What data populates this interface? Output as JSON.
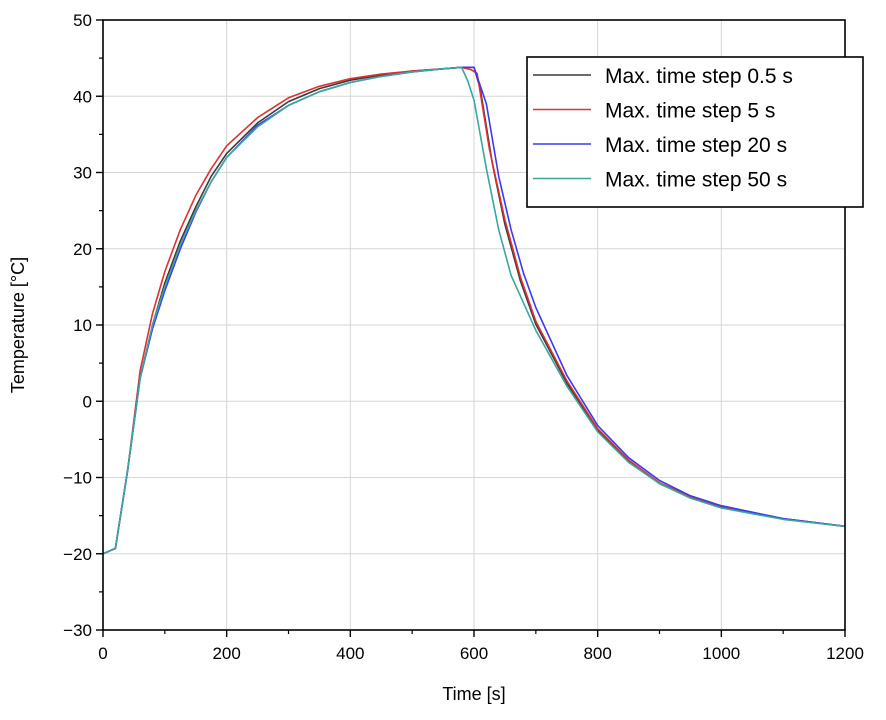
{
  "chart_data": {
    "type": "line",
    "xlabel": "Time [s]",
    "ylabel": "Temperature [°C]",
    "xlim": [
      0,
      1200
    ],
    "ylim": [
      -30,
      50
    ],
    "xticks": [
      0,
      200,
      400,
      600,
      800,
      1000,
      1200
    ],
    "xtick_labels": [
      "0",
      "200",
      "400",
      "600",
      "800",
      "1000",
      "1200"
    ],
    "yticks": [
      -30,
      -20,
      -10,
      0,
      10,
      20,
      30,
      40,
      50
    ],
    "ytick_labels": [
      "−30",
      "−20",
      "−10",
      "0",
      "10",
      "20",
      "30",
      "40",
      "50"
    ],
    "grid": true,
    "legend_position": "top-right",
    "series": [
      {
        "name": "Max. time step 0.5 s",
        "color": "#3a3a3a",
        "x": [
          0,
          20,
          40,
          60,
          80,
          100,
          125,
          150,
          175,
          200,
          250,
          300,
          350,
          400,
          450,
          500,
          550,
          580,
          600,
          610,
          620,
          630,
          650,
          675,
          700,
          750,
          800,
          850,
          900,
          950,
          1000,
          1100,
          1200
        ],
        "y": [
          -20,
          -19.3,
          -9,
          3,
          10,
          15.5,
          21,
          25.5,
          29.5,
          32.5,
          36.5,
          39.3,
          41,
          42.1,
          42.8,
          43.3,
          43.6,
          43.8,
          43.8,
          41,
          36,
          31,
          23.2,
          15.8,
          10.1,
          2.4,
          -3.8,
          -7.8,
          -10.8,
          -12.6,
          -13.9,
          -15.4,
          -16.4
        ]
      },
      {
        "name": "Max. time step 5 s",
        "color": "#e03030",
        "x": [
          0,
          20,
          40,
          60,
          80,
          100,
          125,
          150,
          175,
          200,
          250,
          300,
          350,
          400,
          450,
          500,
          550,
          580,
          595,
          605,
          615,
          625,
          650,
          675,
          700,
          750,
          800,
          850,
          900,
          950,
          1000,
          1100,
          1200
        ],
        "y": [
          -20,
          -19.3,
          -9,
          4,
          11.5,
          17,
          22.5,
          27,
          30.5,
          33.5,
          37.2,
          39.8,
          41.3,
          42.3,
          42.9,
          43.3,
          43.6,
          43.8,
          43.5,
          43,
          38,
          33,
          23.8,
          16.3,
          10.5,
          2.7,
          -3.6,
          -7.7,
          -10.7,
          -12.5,
          -13.8,
          -15.4,
          -16.4
        ]
      },
      {
        "name": "Max. time step 20 s",
        "color": "#3a3af0",
        "x": [
          0,
          20,
          40,
          60,
          80,
          100,
          125,
          150,
          175,
          200,
          250,
          300,
          350,
          400,
          450,
          500,
          550,
          580,
          600,
          620,
          640,
          660,
          680,
          700,
          750,
          800,
          850,
          900,
          950,
          1000,
          1100,
          1200
        ],
        "y": [
          -20,
          -19.3,
          -9,
          3,
          9.5,
          14.5,
          20,
          24.8,
          28.8,
          32,
          36.2,
          38.8,
          40.6,
          41.8,
          42.6,
          43.2,
          43.6,
          43.8,
          43.8,
          39,
          29.5,
          22.5,
          16.8,
          12.3,
          3.4,
          -3.2,
          -7.4,
          -10.4,
          -12.4,
          -13.7,
          -15.4,
          -16.4
        ]
      },
      {
        "name": "Max. time step 50 s",
        "color": "#3aa6a0",
        "x": [
          0,
          20,
          40,
          60,
          80,
          100,
          125,
          150,
          175,
          200,
          250,
          300,
          350,
          400,
          450,
          500,
          550,
          580,
          590,
          600,
          620,
          640,
          660,
          700,
          750,
          800,
          850,
          900,
          950,
          1000,
          1100,
          1200
        ],
        "y": [
          -20,
          -19.3,
          -9,
          3,
          10,
          15,
          20.5,
          25,
          28.8,
          32,
          36,
          38.8,
          40.6,
          41.8,
          42.6,
          43.2,
          43.6,
          43.8,
          42,
          39.5,
          30.5,
          22.5,
          16.5,
          9.3,
          2,
          -4,
          -8,
          -10.8,
          -12.7,
          -14,
          -15.5,
          -16.4
        ]
      }
    ]
  }
}
